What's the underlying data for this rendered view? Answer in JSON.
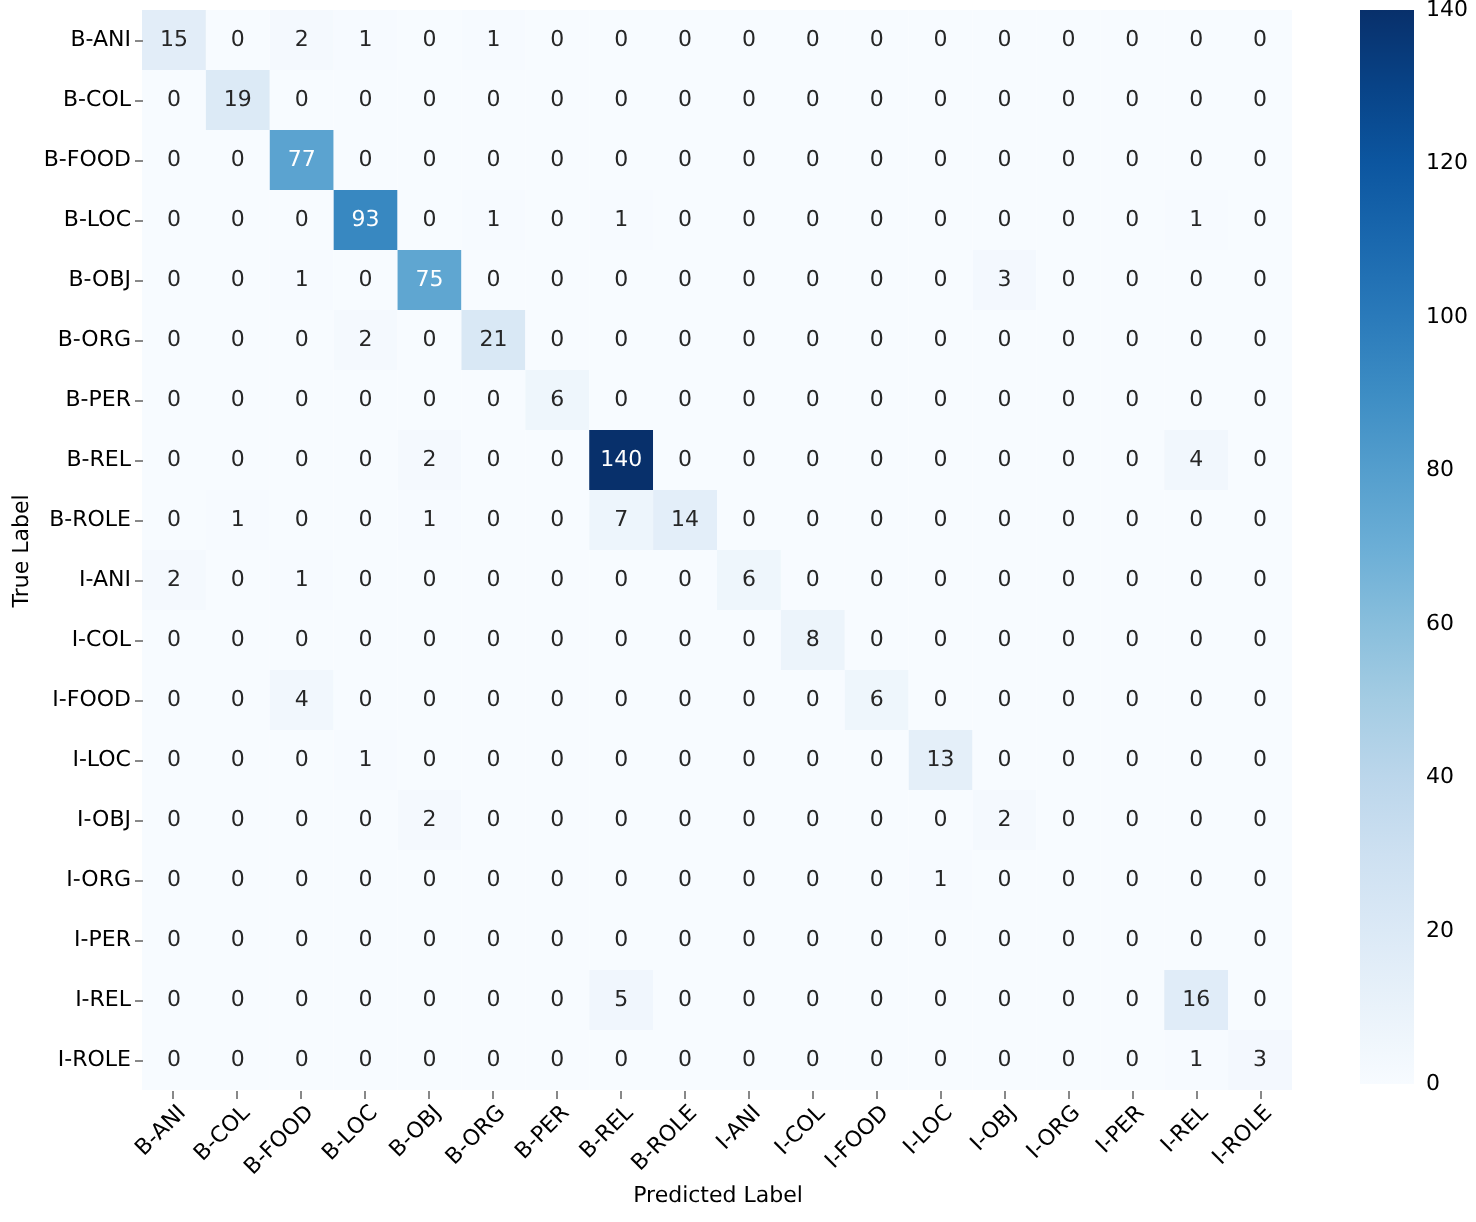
{
  "chart_data": {
    "type": "heatmap",
    "xlabel": "Predicted Label",
    "ylabel": "True Label",
    "categories": [
      "B-ANI",
      "B-COL",
      "B-FOOD",
      "B-LOC",
      "B-OBJ",
      "B-ORG",
      "B-PER",
      "B-REL",
      "B-ROLE",
      "I-ANI",
      "I-COL",
      "I-FOOD",
      "I-LOC",
      "I-OBJ",
      "I-ORG",
      "I-PER",
      "I-REL",
      "I-ROLE"
    ],
    "y_categories": [
      "B-ANI",
      "B-COL",
      "B-FOOD",
      "B-LOC",
      "B-OBJ",
      "B-ORG",
      "B-PER",
      "B-REL",
      "B-ROLE",
      "I-ANI",
      "I-COL",
      "I-FOOD",
      "I-LOC",
      "I-OBJ",
      "I-ORG",
      "I-PER",
      "I-REL",
      "I-ROLE"
    ],
    "cells": [
      [
        15,
        0,
        2,
        1,
        0,
        1,
        0,
        0,
        0,
        0,
        0,
        0,
        0,
        0,
        0,
        0,
        0,
        0
      ],
      [
        0,
        19,
        0,
        0,
        0,
        0,
        0,
        0,
        0,
        0,
        0,
        0,
        0,
        0,
        0,
        0,
        0,
        0
      ],
      [
        0,
        0,
        77,
        0,
        0,
        0,
        0,
        0,
        0,
        0,
        0,
        0,
        0,
        0,
        0,
        0,
        0,
        0
      ],
      [
        0,
        0,
        0,
        93,
        0,
        1,
        0,
        1,
        0,
        0,
        0,
        0,
        0,
        0,
        0,
        0,
        1,
        0
      ],
      [
        0,
        0,
        1,
        0,
        75,
        0,
        0,
        0,
        0,
        0,
        0,
        0,
        0,
        3,
        0,
        0,
        0,
        0
      ],
      [
        0,
        0,
        0,
        2,
        0,
        21,
        0,
        0,
        0,
        0,
        0,
        0,
        0,
        0,
        0,
        0,
        0,
        0
      ],
      [
        0,
        0,
        0,
        0,
        0,
        0,
        6,
        0,
        0,
        0,
        0,
        0,
        0,
        0,
        0,
        0,
        0,
        0
      ],
      [
        0,
        0,
        0,
        0,
        2,
        0,
        0,
        140,
        0,
        0,
        0,
        0,
        0,
        0,
        0,
        0,
        4,
        0
      ],
      [
        0,
        1,
        0,
        0,
        1,
        0,
        0,
        7,
        14,
        0,
        0,
        0,
        0,
        0,
        0,
        0,
        0,
        0
      ],
      [
        2,
        0,
        1,
        0,
        0,
        0,
        0,
        0,
        0,
        6,
        0,
        0,
        0,
        0,
        0,
        0,
        0,
        0
      ],
      [
        0,
        0,
        0,
        0,
        0,
        0,
        0,
        0,
        0,
        0,
        8,
        0,
        0,
        0,
        0,
        0,
        0,
        0
      ],
      [
        0,
        0,
        4,
        0,
        0,
        0,
        0,
        0,
        0,
        0,
        0,
        6,
        0,
        0,
        0,
        0,
        0,
        0
      ],
      [
        0,
        0,
        0,
        1,
        0,
        0,
        0,
        0,
        0,
        0,
        0,
        0,
        13,
        0,
        0,
        0,
        0,
        0
      ],
      [
        0,
        0,
        0,
        0,
        2,
        0,
        0,
        0,
        0,
        0,
        0,
        0,
        0,
        2,
        0,
        0,
        0,
        0
      ],
      [
        0,
        0,
        0,
        0,
        0,
        0,
        0,
        0,
        0,
        0,
        0,
        0,
        1,
        0,
        0,
        0,
        0,
        0
      ],
      [
        0,
        0,
        0,
        0,
        0,
        0,
        0,
        0,
        0,
        0,
        0,
        0,
        0,
        0,
        0,
        0,
        0,
        0
      ],
      [
        0,
        0,
        0,
        0,
        0,
        0,
        0,
        5,
        0,
        0,
        0,
        0,
        0,
        0,
        0,
        0,
        16,
        0
      ],
      [
        0,
        0,
        0,
        0,
        0,
        0,
        0,
        0,
        0,
        0,
        0,
        0,
        0,
        0,
        0,
        0,
        1,
        3
      ]
    ],
    "clim": [
      0,
      140
    ],
    "cticks": [
      0,
      20,
      40,
      60,
      80,
      100,
      120,
      140
    ],
    "data_labels": true
  }
}
